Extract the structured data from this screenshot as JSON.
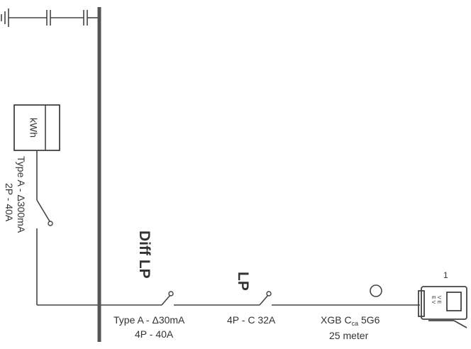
{
  "meter": {
    "label": "kWh"
  },
  "main_breaker": {
    "type": "Type A - Δ300mA",
    "rating": "2P - 40A"
  },
  "diff_breaker": {
    "heading": "Diff LP",
    "type": "Type A - Δ30mA",
    "rating": "4P - 40A"
  },
  "mcb": {
    "heading": "LP",
    "rating": "4P - C 32A"
  },
  "cable": {
    "spec_prefix": "XGB C",
    "spec_sub": "ca",
    "spec_suffix": " 5G6",
    "length": "25 meter"
  },
  "charger": {
    "number": "1",
    "label_line1": "V E",
    "label_line2": "E V"
  }
}
